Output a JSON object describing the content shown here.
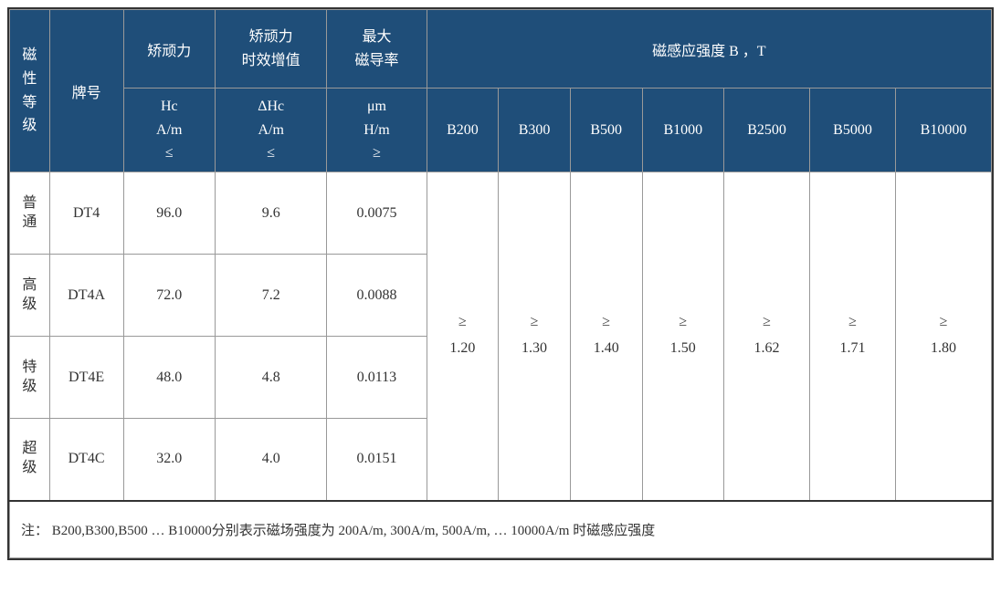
{
  "colors": {
    "header_bg": "#1f4e79",
    "header_text": "#ffffff",
    "body_bg": "#ffffff",
    "body_text": "#333333",
    "border": "#999999",
    "outer_border": "#333333"
  },
  "headers": {
    "grade": "磁\n性\n等\n级",
    "brand": "牌号",
    "hc_top": "矫顽力",
    "hc_sub": "Hc\nA/m\n≤",
    "dhc_top": "矫顽力\n时效增值",
    "dhc_sub": "ΔHc\nA/m\n≤",
    "um_top": "最大\n磁导率",
    "um_sub": "μm\nH/m\n≥",
    "bgroup": "磁感应强度 B ，T",
    "b200": "B200",
    "b300": "B300",
    "b500": "B500",
    "b1000": "B1000",
    "b2500": "B2500",
    "b5000": "B5000",
    "b10000": "B10000"
  },
  "rows": [
    {
      "grade": "普\n通",
      "brand": "DT4",
      "hc": "96.0",
      "dhc": "9.6",
      "um": "0.0075"
    },
    {
      "grade": "高\n级",
      "brand": "DT4A",
      "hc": "72.0",
      "dhc": "7.2",
      "um": "0.0088"
    },
    {
      "grade": "特\n级",
      "brand": "DT4E",
      "hc": "48.0",
      "dhc": "4.8",
      "um": "0.0113"
    },
    {
      "grade": "超\n级",
      "brand": "DT4C",
      "hc": "32.0",
      "dhc": "4.0",
      "um": "0.0151"
    }
  ],
  "bvalues": {
    "b200": "≥\n1.20",
    "b300": "≥\n1.30",
    "b500": "≥\n1.40",
    "b1000": "≥\n1.50",
    "b2500": "≥\n1.62",
    "b5000": "≥\n1.71",
    "b10000": "≥\n1.80"
  },
  "note": "注：  B200,B300,B500 … B10000分别表示磁场强度为 200A/m, 300A/m, 500A/m, … 10000A/m 时磁感应强度"
}
